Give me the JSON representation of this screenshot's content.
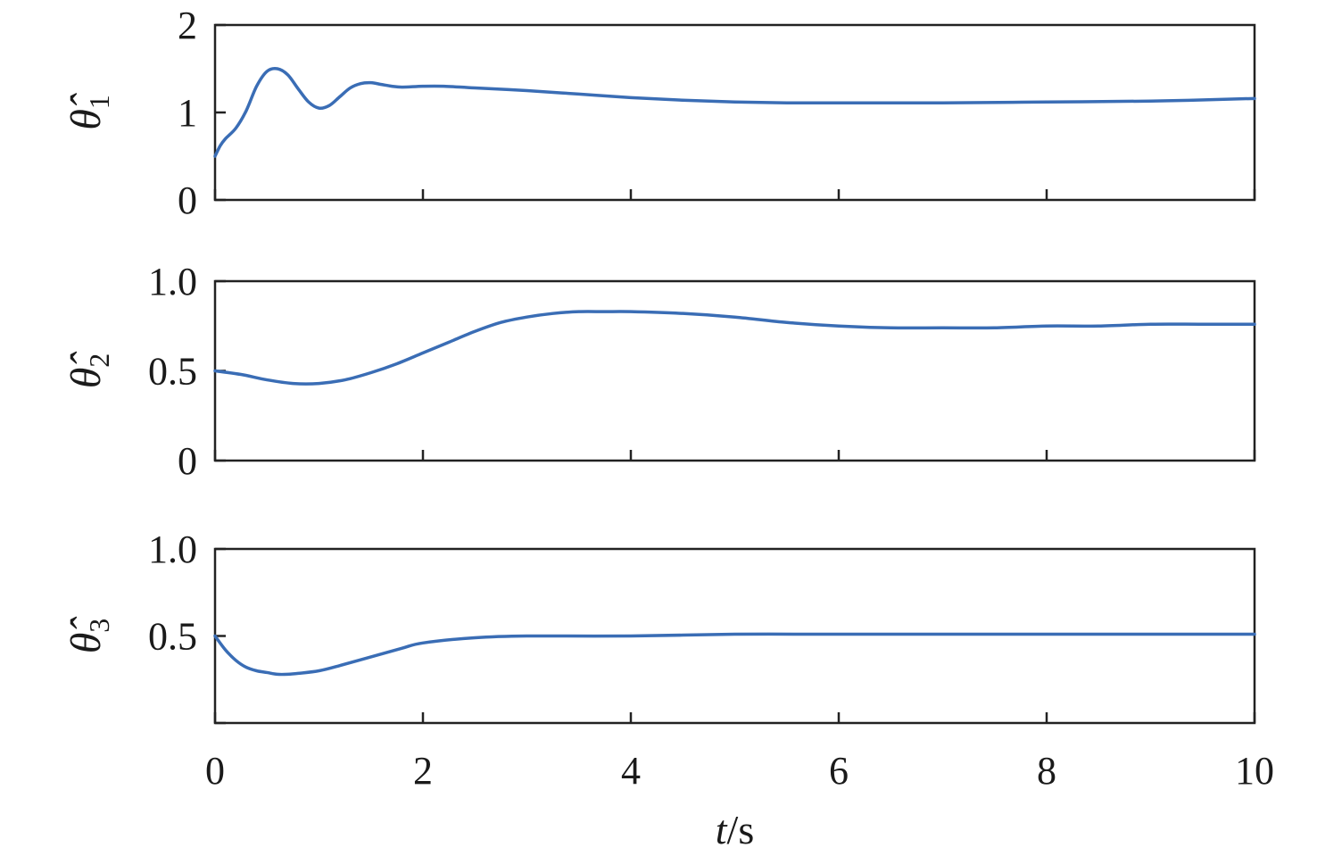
{
  "chart_data": [
    {
      "type": "line",
      "ylabel": {
        "symbol": "θ̂",
        "subscript": "1"
      },
      "xlim": [
        0,
        10
      ],
      "ylim": [
        0,
        2
      ],
      "yticks": [
        "0",
        "1",
        "2"
      ],
      "xticks": [
        0,
        2,
        4,
        6,
        8,
        10
      ],
      "show_x_tick_labels": false,
      "grid": false,
      "series": [
        {
          "color": "#3a6db5",
          "x": [
            0,
            0.05,
            0.1,
            0.2,
            0.3,
            0.4,
            0.5,
            0.6,
            0.7,
            0.8,
            0.9,
            1.0,
            1.1,
            1.2,
            1.3,
            1.4,
            1.5,
            1.6,
            1.7,
            1.8,
            2.0,
            2.2,
            2.5,
            3.0,
            3.5,
            4.0,
            4.5,
            5.0,
            5.5,
            6.0,
            7.0,
            8.0,
            9.0,
            10.0
          ],
          "y": [
            0.5,
            0.62,
            0.7,
            0.82,
            1.02,
            1.3,
            1.47,
            1.5,
            1.43,
            1.27,
            1.12,
            1.05,
            1.08,
            1.18,
            1.28,
            1.33,
            1.34,
            1.32,
            1.3,
            1.29,
            1.3,
            1.3,
            1.28,
            1.25,
            1.21,
            1.17,
            1.14,
            1.12,
            1.11,
            1.11,
            1.11,
            1.12,
            1.13,
            1.16
          ]
        }
      ]
    },
    {
      "type": "line",
      "ylabel": {
        "symbol": "θ̂",
        "subscript": "2"
      },
      "xlim": [
        0,
        10
      ],
      "ylim": [
        0,
        1
      ],
      "yticks": [
        "0",
        "0.5",
        "1.0"
      ],
      "xticks": [
        0,
        2,
        4,
        6,
        8,
        10
      ],
      "show_x_tick_labels": false,
      "grid": false,
      "series": [
        {
          "color": "#3a6db5",
          "x": [
            0,
            0.25,
            0.5,
            0.75,
            1.0,
            1.25,
            1.5,
            1.75,
            2.0,
            2.25,
            2.5,
            2.75,
            3.0,
            3.25,
            3.5,
            3.75,
            4.0,
            4.5,
            5.0,
            5.5,
            6.0,
            6.5,
            7.0,
            7.5,
            8.0,
            8.5,
            9.0,
            9.5,
            10.0
          ],
          "y": [
            0.5,
            0.48,
            0.45,
            0.43,
            0.43,
            0.45,
            0.49,
            0.54,
            0.6,
            0.66,
            0.72,
            0.77,
            0.8,
            0.82,
            0.83,
            0.83,
            0.83,
            0.82,
            0.8,
            0.77,
            0.75,
            0.74,
            0.74,
            0.74,
            0.75,
            0.75,
            0.76,
            0.76,
            0.76
          ]
        }
      ]
    },
    {
      "type": "line",
      "ylabel": {
        "symbol": "θ̂",
        "subscript": "3"
      },
      "xlabel": {
        "italic": "t",
        "rest": "/s"
      },
      "xlim": [
        0,
        10
      ],
      "ylim": [
        0,
        1
      ],
      "yticks": [
        "",
        "0.5",
        "1.0"
      ],
      "xticks": [
        0,
        2,
        4,
        6,
        8,
        10
      ],
      "xtick_labels": [
        "0",
        "2",
        "4",
        "6",
        "8",
        "10"
      ],
      "show_x_tick_labels": true,
      "grid": false,
      "series": [
        {
          "color": "#3a6db5",
          "x": [
            0,
            0.1,
            0.2,
            0.3,
            0.4,
            0.5,
            0.6,
            0.7,
            0.8,
            1.0,
            1.2,
            1.5,
            1.8,
            2.0,
            2.5,
            3.0,
            4.0,
            5.0,
            6.0,
            7.0,
            8.0,
            9.0,
            10.0
          ],
          "y": [
            0.5,
            0.42,
            0.36,
            0.32,
            0.3,
            0.29,
            0.28,
            0.28,
            0.285,
            0.3,
            0.33,
            0.38,
            0.43,
            0.46,
            0.49,
            0.5,
            0.5,
            0.51,
            0.51,
            0.51,
            0.51,
            0.51,
            0.51
          ]
        }
      ]
    }
  ]
}
